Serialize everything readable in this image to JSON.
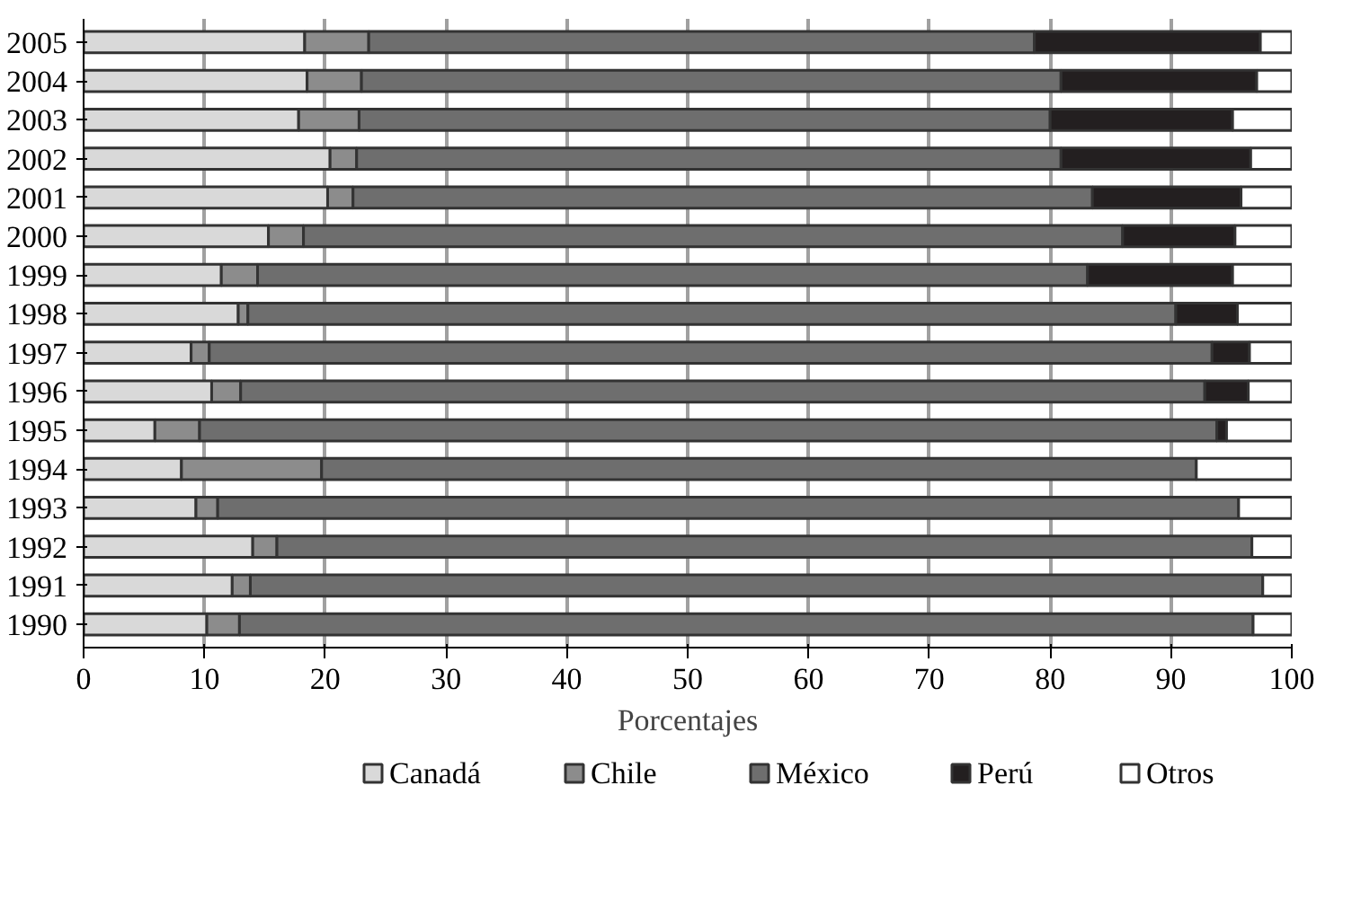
{
  "chart_data": {
    "type": "bar",
    "orientation": "horizontal",
    "stacked": true,
    "xlabel": "Porcentajes",
    "categories": [
      "2005",
      "2004",
      "2003",
      "2002",
      "2001",
      "2000",
      "1999",
      "1998",
      "1997",
      "1996",
      "1995",
      "1994",
      "1993",
      "1992",
      "1991",
      "1990"
    ],
    "series": [
      {
        "name": "Canadá",
        "color": "#d9d9d9",
        "values": [
          18.3,
          18.5,
          17.8,
          20.4,
          20.2,
          15.3,
          11.4,
          12.8,
          8.9,
          10.6,
          5.9,
          8.1,
          9.3,
          14,
          12.3,
          10.2
        ]
      },
      {
        "name": "Chile",
        "color": "#8c8c8c",
        "values": [
          5.3,
          4.5,
          5,
          2.2,
          2.1,
          2.9,
          3,
          0.8,
          1.5,
          2.4,
          3.7,
          11.6,
          1.8,
          2,
          1.5,
          2.7
        ]
      },
      {
        "name": "México",
        "color": "#6e6e6e",
        "values": [
          55.1,
          57.9,
          57.2,
          58.3,
          61.2,
          67.8,
          68.7,
          76.8,
          83,
          79.8,
          84.2,
          72.4,
          84.5,
          80.7,
          83.8,
          83.9
        ]
      },
      {
        "name": "Perú",
        "color": "#231f20",
        "values": [
          18.7,
          16.2,
          15.1,
          15.7,
          12.3,
          9.3,
          12,
          5.1,
          3.1,
          3.6,
          0.8,
          null,
          null,
          null,
          null,
          null
        ]
      },
      {
        "name": "Otros",
        "color": "#ffffff",
        "values": [
          2.6,
          2.9,
          4.9,
          3.4,
          4.2,
          4.7,
          4.9,
          4.5,
          3.5,
          3.6,
          5.4,
          7.9,
          4.4,
          3.3,
          2.4,
          3.2
        ]
      }
    ],
    "xlim": [
      0,
      100
    ],
    "xticks": [
      0,
      10,
      20,
      30,
      40,
      50,
      60,
      70,
      80,
      90,
      100
    ],
    "grid": "x",
    "legend": "bottom"
  }
}
